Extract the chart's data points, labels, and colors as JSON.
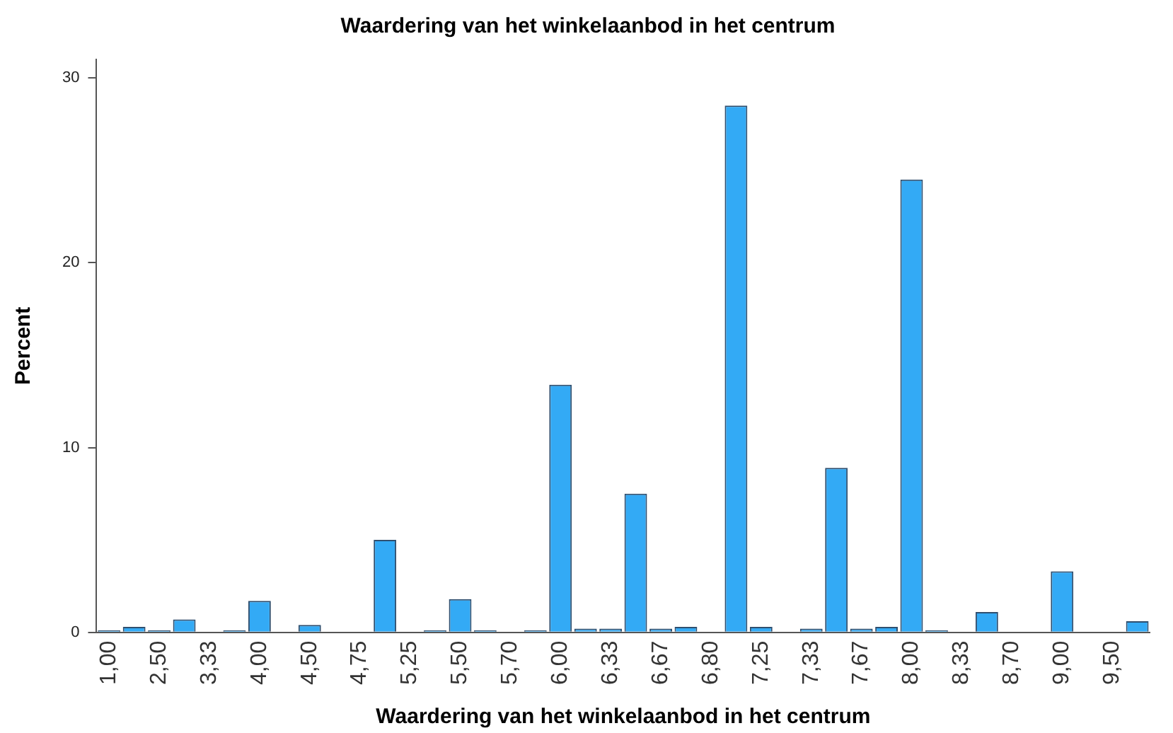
{
  "chart_data": {
    "type": "bar",
    "title": "Waardering van het winkelaanbod in het centrum",
    "xlabel": "Waardering van het winkelaanbod in het centrum",
    "ylabel": "Percent",
    "categories": [
      "1,00",
      null,
      "2,50",
      null,
      "3,33",
      null,
      "4,00",
      null,
      "4,50",
      null,
      "4,75",
      null,
      "5,25",
      null,
      "5,50",
      null,
      "5,70",
      null,
      "6,00",
      null,
      "6,33",
      null,
      "6,67",
      null,
      "6,80",
      null,
      "7,25",
      null,
      "7,33",
      null,
      "7,67",
      null,
      "8,00",
      null,
      "8,33",
      null,
      "8,70",
      null,
      "9,00",
      null,
      "9,50",
      null
    ],
    "values": [
      0.1,
      0.3,
      0.1,
      0.7,
      0,
      0.1,
      1.7,
      0,
      0.4,
      0,
      0,
      5.0,
      0,
      0.1,
      1.8,
      0.1,
      0,
      0.1,
      13.4,
      0.2,
      0.2,
      7.5,
      0.2,
      0.3,
      0,
      28.5,
      0.3,
      0,
      0.2,
      8.9,
      0.2,
      0.3,
      24.5,
      0.1,
      0,
      1.1,
      0,
      0,
      3.3,
      0,
      0,
      0.6
    ],
    "color": "#33aaf5",
    "ylim": [
      0,
      31
    ],
    "yticks": [
      0,
      10,
      20,
      30
    ],
    "grid": false,
    "legend": false
  }
}
